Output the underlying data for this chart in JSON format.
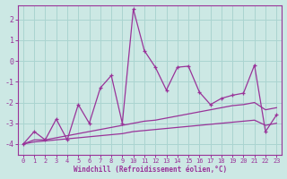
{
  "background_color": "#cce8e4",
  "grid_color": "#aad4d0",
  "line_color": "#993399",
  "xlim": [
    -0.5,
    23.5
  ],
  "ylim": [
    -4.5,
    2.7
  ],
  "yticks": [
    -4,
    -3,
    -2,
    -1,
    0,
    1,
    2
  ],
  "xticks": [
    0,
    1,
    2,
    3,
    4,
    5,
    6,
    7,
    8,
    9,
    10,
    11,
    12,
    13,
    14,
    15,
    16,
    17,
    18,
    19,
    20,
    21,
    22,
    23
  ],
  "xlabel": "Windchill (Refroidissement éolien,°C)",
  "series1_x": [
    0,
    1,
    2,
    3,
    4,
    5,
    6,
    7,
    8,
    9,
    10,
    11,
    12,
    13,
    14,
    15,
    16,
    17,
    18,
    19,
    20,
    21,
    22,
    23
  ],
  "series1_y": [
    -4.0,
    -3.8,
    -3.8,
    -3.7,
    -3.6,
    -3.5,
    -3.4,
    -3.3,
    -3.2,
    -3.1,
    -3.0,
    -2.9,
    -2.85,
    -2.75,
    -2.65,
    -2.55,
    -2.45,
    -2.35,
    -2.25,
    -2.15,
    -2.1,
    -2.0,
    -2.35,
    -2.25
  ],
  "series2_x": [
    0,
    1,
    2,
    3,
    4,
    5,
    6,
    7,
    8,
    9,
    10,
    11,
    12,
    13,
    14,
    15,
    16,
    17,
    18,
    19,
    20,
    21,
    22,
    23
  ],
  "series2_y": [
    -4.0,
    -3.9,
    -3.85,
    -3.8,
    -3.75,
    -3.7,
    -3.65,
    -3.6,
    -3.55,
    -3.5,
    -3.4,
    -3.35,
    -3.3,
    -3.25,
    -3.2,
    -3.15,
    -3.1,
    -3.05,
    -3.0,
    -2.95,
    -2.9,
    -2.85,
    -3.1,
    -3.0
  ],
  "series3_x": [
    0,
    1,
    2,
    3,
    4,
    5,
    6,
    7,
    8,
    9,
    10,
    11,
    12,
    13,
    14,
    15,
    16,
    17,
    18,
    19,
    20,
    21,
    22,
    23
  ],
  "series3_y": [
    -4.0,
    -3.4,
    -3.8,
    -2.8,
    -3.8,
    -2.1,
    -3.0,
    -1.3,
    -0.7,
    -3.0,
    2.5,
    0.5,
    -0.3,
    -1.4,
    -0.3,
    -0.25,
    -1.5,
    -2.1,
    -1.8,
    -1.65,
    -1.55,
    -0.2,
    -3.4,
    -2.6
  ]
}
